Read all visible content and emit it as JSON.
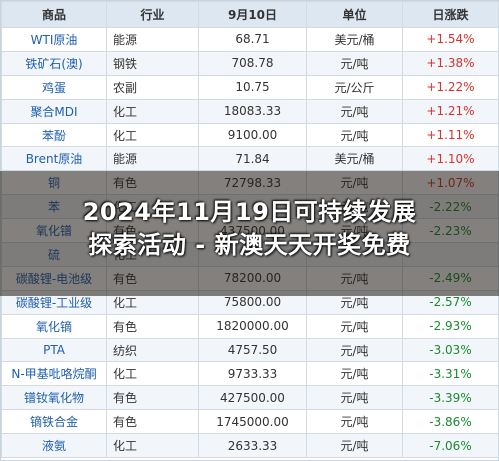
{
  "table": {
    "headers": [
      "商品",
      "行业",
      "9月10日",
      "单位",
      "日涨跌"
    ],
    "rows": [
      {
        "name": "WTI原油",
        "industry": "能源",
        "price": "68.71",
        "unit": "美元/桶",
        "change": "+1.54%",
        "dir": "up"
      },
      {
        "name": "铁矿石(澳)",
        "industry": "钢铁",
        "price": "708.78",
        "unit": "元/吨",
        "change": "+1.38%",
        "dir": "up"
      },
      {
        "name": "鸡蛋",
        "industry": "农副",
        "price": "10.75",
        "unit": "元/公斤",
        "change": "+1.22%",
        "dir": "up"
      },
      {
        "name": "聚合MDI",
        "industry": "化工",
        "price": "18083.33",
        "unit": "元/吨",
        "change": "+1.21%",
        "dir": "up"
      },
      {
        "name": "苯酚",
        "industry": "化工",
        "price": "9100.00",
        "unit": "元/吨",
        "change": "+1.11%",
        "dir": "up"
      },
      {
        "name": "Brent原油",
        "industry": "能源",
        "price": "71.84",
        "unit": "美元/桶",
        "change": "+1.10%",
        "dir": "up"
      },
      {
        "name": "铜",
        "industry": "有色",
        "price": "72798.33",
        "unit": "元/吨",
        "change": "+1.07%",
        "dir": "up"
      },
      {
        "name": "苯",
        "industry": "化工",
        "price": "",
        "unit": "元/吨",
        "change": "-2.22%",
        "dir": "down"
      },
      {
        "name": "氧化镨",
        "industry": "有色",
        "price": "437500.00",
        "unit": "元/吨",
        "change": "-2.23%",
        "dir": "down"
      },
      {
        "name": "硫",
        "industry": "化工",
        "price": "",
        "unit": "",
        "change": "",
        "dir": "down"
      },
      {
        "name": "碳酸锂-电池级",
        "industry": "有色",
        "price": "78200.00",
        "unit": "元/吨",
        "change": "-2.49%",
        "dir": "down"
      },
      {
        "name": "碳酸锂-工业级",
        "industry": "化工",
        "price": "75800.00",
        "unit": "元/吨",
        "change": "-2.57%",
        "dir": "down"
      },
      {
        "name": "氧化镝",
        "industry": "有色",
        "price": "1820000.00",
        "unit": "元/吨",
        "change": "-2.93%",
        "dir": "down"
      },
      {
        "name": "PTA",
        "industry": "纺织",
        "price": "4757.50",
        "unit": "元/吨",
        "change": "-3.03%",
        "dir": "down"
      },
      {
        "name": "N-甲基吡咯烷酮",
        "industry": "化工",
        "price": "9733.33",
        "unit": "元/吨",
        "change": "-3.31%",
        "dir": "down"
      },
      {
        "name": "镨钕氧化物",
        "industry": "有色",
        "price": "427500.00",
        "unit": "元/吨",
        "change": "-3.39%",
        "dir": "down"
      },
      {
        "name": "镝铁合金",
        "industry": "有色",
        "price": "1745000.00",
        "unit": "元/吨",
        "change": "-3.86%",
        "dir": "down"
      },
      {
        "name": "液氨",
        "industry": "化工",
        "price": "2633.33",
        "unit": "元/吨",
        "change": "-7.06%",
        "dir": "down"
      }
    ]
  },
  "banner": {
    "line1": "2024年11月19日可持续发展",
    "line2": "探索活动 - 新澳天天开奖免费"
  },
  "colors": {
    "header_bg": "#dde7f1",
    "name_blue": "#1f5fae",
    "up_red": "#d8322d",
    "down_green": "#1a8a2e"
  }
}
